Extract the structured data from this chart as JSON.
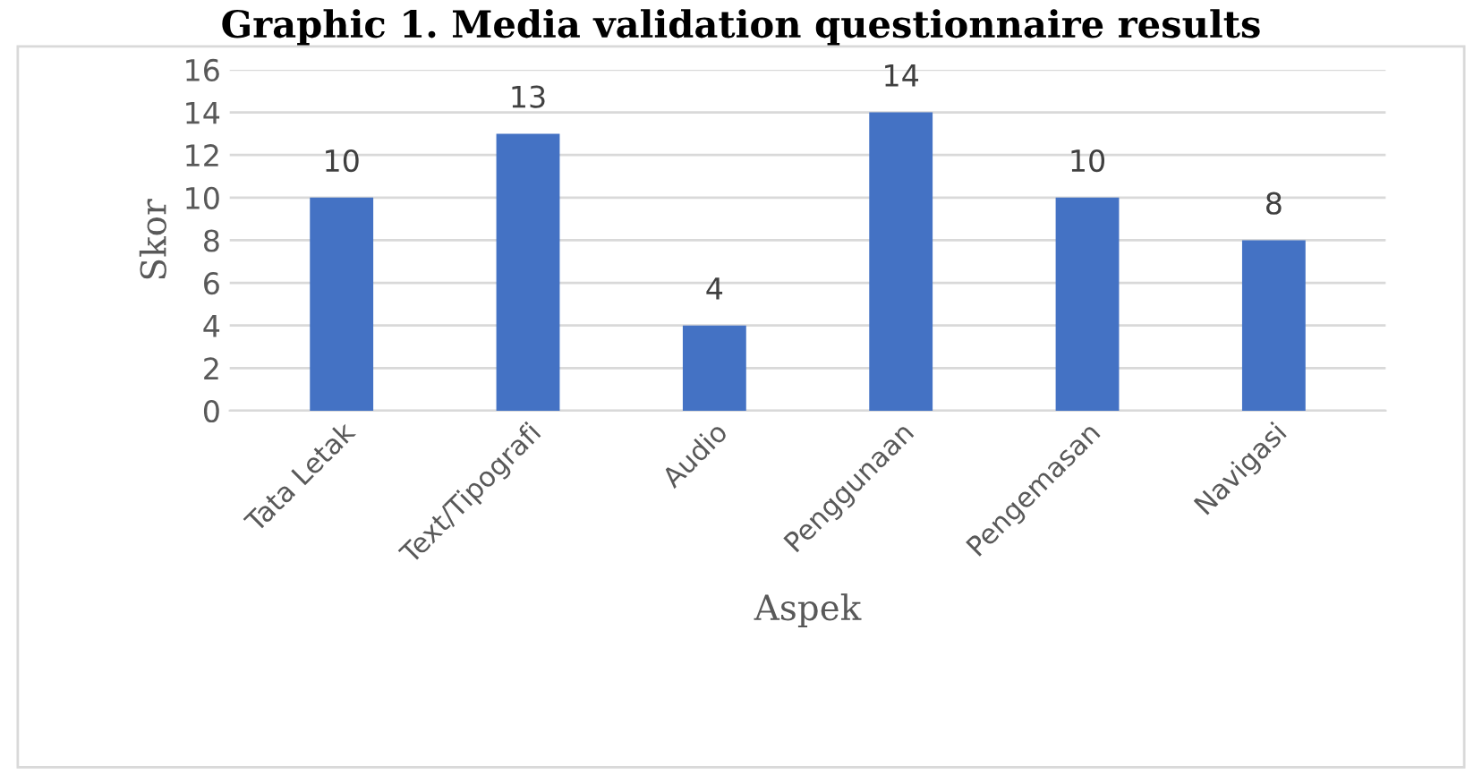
{
  "chart_data": {
    "type": "bar",
    "title": "Graphic 1. Media validation questionnaire results",
    "xlabel": "Aspek",
    "ylabel": "Skor",
    "categories": [
      "Tata Letak",
      "Text/Tipografi",
      "Audio",
      "Penggunaan",
      "Pengemasan",
      "Navigasi"
    ],
    "values": [
      10,
      13,
      4,
      14,
      10,
      8
    ],
    "color": "#4472c4",
    "ylim": [
      0,
      16
    ],
    "yticks": [
      0,
      2,
      4,
      6,
      8,
      10,
      12,
      14,
      16
    ],
    "grid": "y",
    "data_labels": true
  }
}
